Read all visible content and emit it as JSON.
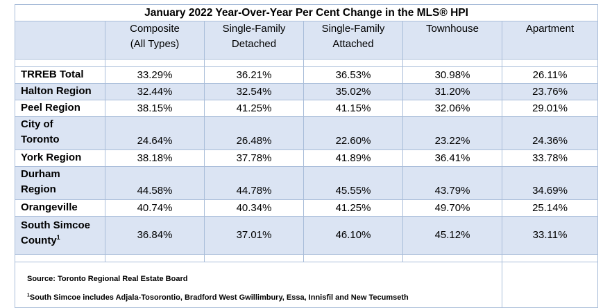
{
  "title": "January 2022 Year-Over-Year Per Cent Change in the MLS® HPI",
  "columns": [
    {
      "line1": "Composite",
      "line2": "(All Types)"
    },
    {
      "line1": "Single-Family",
      "line2": "Detached"
    },
    {
      "line1": "Single-Family",
      "line2": "Attached"
    },
    {
      "line1": "Townhouse",
      "line2": ""
    },
    {
      "line1": "Apartment",
      "line2": ""
    }
  ],
  "rows": [
    {
      "region_line1": "TRREB Total",
      "region_line2": "",
      "values": [
        "33.29%",
        "36.21%",
        "36.53%",
        "30.98%",
        "26.11%"
      ]
    },
    {
      "region_line1": "Halton Region",
      "region_line2": "",
      "values": [
        "32.44%",
        "32.54%",
        "35.02%",
        "31.20%",
        "23.76%"
      ]
    },
    {
      "region_line1": "Peel Region",
      "region_line2": "",
      "values": [
        "38.15%",
        "41.25%",
        "41.15%",
        "32.06%",
        "29.01%"
      ]
    },
    {
      "region_line1": "City of",
      "region_line2": "Toronto",
      "values": [
        "24.64%",
        "26.48%",
        "22.60%",
        "23.22%",
        "24.36%"
      ]
    },
    {
      "region_line1": "York Region",
      "region_line2": "",
      "values": [
        "38.18%",
        "37.78%",
        "41.89%",
        "36.41%",
        "33.78%"
      ]
    },
    {
      "region_line1": "Durham",
      "region_line2": "Region",
      "values": [
        "44.58%",
        "44.78%",
        "45.55%",
        "43.79%",
        "34.69%"
      ]
    },
    {
      "region_line1": "Orangeville",
      "region_line2": "",
      "values": [
        "40.74%",
        "40.34%",
        "41.25%",
        "49.70%",
        "25.14%"
      ]
    },
    {
      "region_line1": "South Simcoe",
      "region_line2": "County",
      "region_sup": "1",
      "values": [
        "36.84%",
        "37.01%",
        "46.10%",
        "45.12%",
        "33.11%"
      ]
    }
  ],
  "footer": {
    "source": "Source: Toronto Regional Real Estate Board",
    "note_sup": "1",
    "note": "South Simcoe includes Adjala-Tosorontio, Bradford West Gwillimbury, Essa, Innisfil and New Tecumseth"
  },
  "colors": {
    "header_fill": "#dbe4f3",
    "border": "#a9bdd9"
  }
}
